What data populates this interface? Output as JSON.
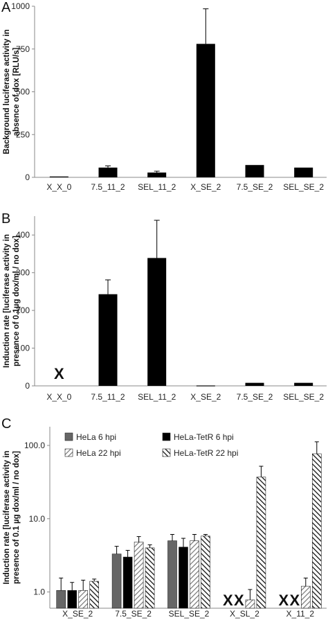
{
  "chart_data": [
    {
      "panel": "A",
      "type": "bar",
      "ylabel_lines": [
        "Background luciferase activity in",
        "absence of dox [RLU/s]"
      ],
      "categories": [
        "X_X_0",
        "7.5_11_2",
        "SEL_11_2",
        "X_SE_2",
        "7.5_SE_2",
        "SEL_SE_2"
      ],
      "values": [
        5,
        57,
        28,
        780,
        72,
        57
      ],
      "errors": [
        0,
        10,
        8,
        205,
        0,
        0
      ],
      "ylim": [
        0,
        1000
      ],
      "yticks": [
        0,
        250,
        500,
        750,
        1000
      ],
      "bar_color": "#000000",
      "markers": []
    },
    {
      "panel": "B",
      "type": "bar",
      "ylabel_lines": [
        "Induction rate [luciferase activity in",
        "presence of 0.1µg dox/ml / no dox]"
      ],
      "categories": [
        "X_X_0",
        "7.5_11_2",
        "SEL_11_2",
        "X_SE_2",
        "7.5_SE_2",
        "SEL_SE_2"
      ],
      "values": [
        null,
        243,
        339,
        1,
        8,
        8
      ],
      "errors": [
        0,
        38,
        100,
        0,
        0,
        0
      ],
      "ylim": [
        0,
        450
      ],
      "yticks": [
        0,
        100,
        200,
        300,
        400
      ],
      "bar_color": "#000000",
      "markers": [
        {
          "category_index": 0,
          "text": "X"
        }
      ]
    },
    {
      "panel": "C",
      "type": "bar",
      "scale": "log",
      "ylabel_lines": [
        "Induction rate [luciferase activity in",
        "presence of 0.1 µg dox/ml / no dox]"
      ],
      "categories": [
        "X_SE_2",
        "7.5_SE_2",
        "SEL_SE_2",
        "X_SL_2",
        "X_11_2"
      ],
      "ylim": [
        0.6,
        180
      ],
      "yticks": [
        1,
        10,
        100
      ],
      "ytick_labels": [
        "1.0",
        "10.0",
        "100.0"
      ],
      "series": [
        {
          "name": "HeLa 6 hpi",
          "style": "gray",
          "values": [
            1.05,
            3.3,
            5.0,
            null,
            null
          ],
          "errors": [
            0.5,
            0.9,
            1.1,
            0,
            0
          ]
        },
        {
          "name": "HeLa-TetR 6 hpi",
          "style": "black",
          "values": [
            1.05,
            3.0,
            4.1,
            null,
            null
          ],
          "errors": [
            0.3,
            0.7,
            1.3,
            0,
            0
          ]
        },
        {
          "name": "HeLa 22 hpi",
          "style": "hatch-light",
          "values": [
            1.05,
            4.8,
            5.0,
            0.78,
            1.2
          ],
          "errors": [
            0.4,
            0.9,
            1.1,
            0.3,
            0.35
          ]
        },
        {
          "name": "HeLa-TetR 22 hpi",
          "style": "hatch-dark",
          "values": [
            1.4,
            4.0,
            5.8,
            37,
            77
          ],
          "errors": [
            0.1,
            0.4,
            0.3,
            15,
            35
          ]
        }
      ],
      "markers": [
        {
          "category_index": 3,
          "series_index": 0,
          "text": "X"
        },
        {
          "category_index": 3,
          "series_index": 1,
          "text": "X"
        },
        {
          "category_index": 4,
          "series_index": 0,
          "text": "X"
        },
        {
          "category_index": 4,
          "series_index": 1,
          "text": "X"
        }
      ]
    }
  ]
}
